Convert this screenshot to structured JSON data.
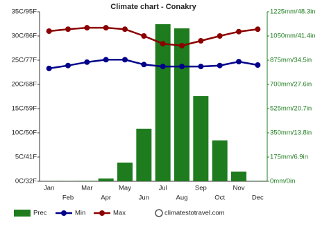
{
  "chart_data": {
    "type": "bar-line",
    "title": "Climate chart - Conakry",
    "categories": [
      "Jan",
      "Feb",
      "Mar",
      "Apr",
      "May",
      "Jun",
      "Jul",
      "Aug",
      "Sep",
      "Oct",
      "Nov",
      "Dec"
    ],
    "series": [
      {
        "name": "Prec",
        "type": "bar",
        "axis": "y2",
        "color": "#1e7b1e",
        "values": [
          1,
          1,
          3,
          20,
          135,
          380,
          1135,
          1105,
          615,
          295,
          70,
          3
        ]
      },
      {
        "name": "Min",
        "type": "line",
        "axis": "y",
        "color": "#00008b",
        "values": [
          23.3,
          23.9,
          24.6,
          25.1,
          25.1,
          24.1,
          23.7,
          23.7,
          23.7,
          23.9,
          24.7,
          24.0
        ]
      },
      {
        "name": "Max",
        "type": "line",
        "axis": "y",
        "color": "#8b0000",
        "values": [
          31.0,
          31.4,
          31.7,
          31.7,
          31.4,
          30.0,
          28.4,
          28.0,
          29.0,
          30.0,
          30.9,
          31.4
        ]
      }
    ],
    "ylim": [
      0,
      35
    ],
    "yticks": [
      {
        "value": 0,
        "label": "0C/32F"
      },
      {
        "value": 5,
        "label": "5C/41F"
      },
      {
        "value": 10,
        "label": "10C/50F"
      },
      {
        "value": 15,
        "label": "15C/59F"
      },
      {
        "value": 20,
        "label": "20C/68F"
      },
      {
        "value": 25,
        "label": "25C/77F"
      },
      {
        "value": 30,
        "label": "30C/86F"
      },
      {
        "value": 35,
        "label": "35C/95F"
      }
    ],
    "y2lim": [
      0,
      1225
    ],
    "y2ticks": [
      {
        "value": 0,
        "label": "0mm/0in"
      },
      {
        "value": 175,
        "label": "175mm/6.9in"
      },
      {
        "value": 350,
        "label": "350mm/13.8in"
      },
      {
        "value": 525,
        "label": "525mm/20.7in"
      },
      {
        "value": 700,
        "label": "700mm/27.6in"
      },
      {
        "value": 875,
        "label": "875mm/34.5in"
      },
      {
        "value": 1050,
        "label": "1050mm/41.4in"
      },
      {
        "value": 1225,
        "label": "1225mm/48.3in"
      }
    ],
    "y2_color": "#1e7b1e",
    "source": "climatestotravel.com"
  }
}
